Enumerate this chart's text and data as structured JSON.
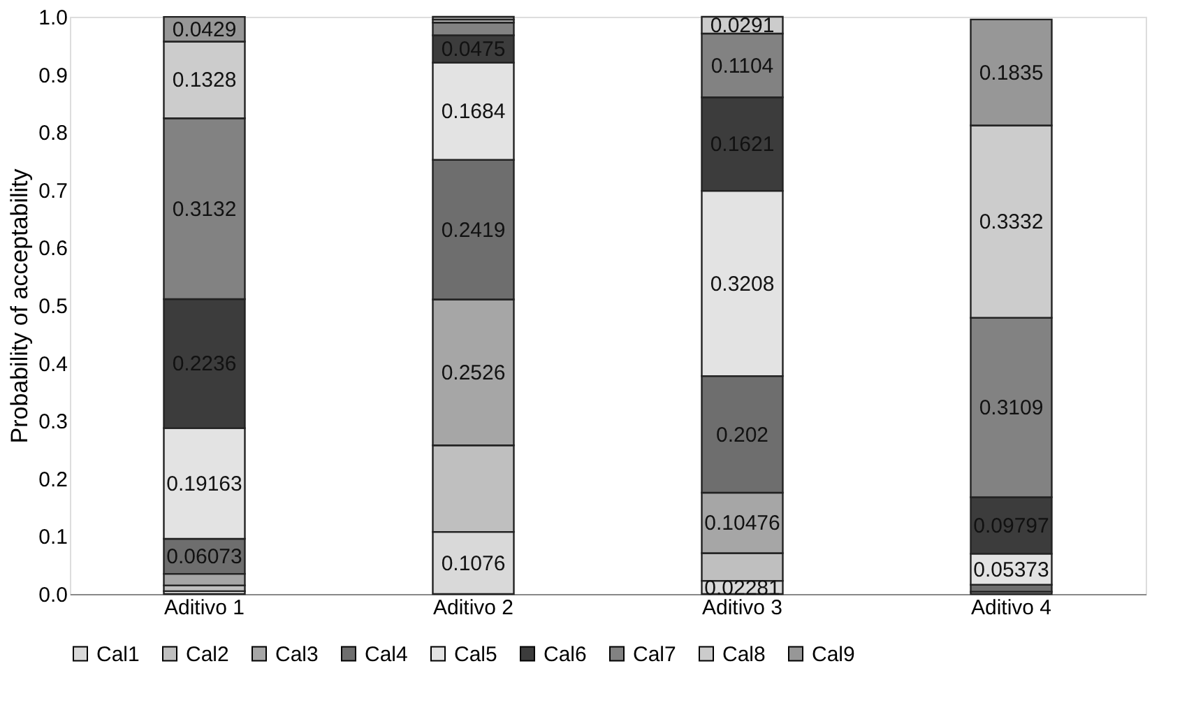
{
  "chart_data": {
    "type": "bar",
    "stacked": true,
    "ylabel": "Probability of acceptability",
    "categories": [
      "Aditivo 1",
      "Aditivo 2",
      "Aditivo 3",
      "Aditivo 4"
    ],
    "ylim": [
      0,
      1
    ],
    "yticks": [
      {
        "value": 0,
        "label": "0.0"
      },
      0.1,
      0.2,
      0.3,
      0.4,
      0.5,
      0.6,
      0.7,
      0.8,
      0.9,
      {
        "value": 1,
        "label": "1.0"
      }
    ],
    "grid": false,
    "legend": "bottom",
    "series": [
      {
        "name": "Cal1",
        "color": "#d9d9d9",
        "values": [
          0.005,
          0.1076,
          0.02281,
          null
        ],
        "value_labels": [
          null,
          "0.1076",
          "0.02281",
          null
        ]
      },
      {
        "name": "Cal2",
        "color": "#bfbfbf",
        "values": [
          0.01,
          0.15,
          0.048,
          null
        ],
        "value_labels": [
          null,
          null,
          null,
          null
        ]
      },
      {
        "name": "Cal3",
        "color": "#a6a6a6",
        "values": [
          0.02,
          0.2526,
          0.10476,
          0.004
        ],
        "value_labels": [
          null,
          "0.2526",
          "0.10476",
          null
        ]
      },
      {
        "name": "Cal4",
        "color": "#6e6e6e",
        "values": [
          0.06073,
          0.2419,
          0.202,
          0.012
        ],
        "value_labels": [
          "0.06073",
          "0.2419",
          "0.202",
          null
        ]
      },
      {
        "name": "Cal5",
        "color": "#e3e3e3",
        "values": [
          0.19163,
          0.1684,
          0.3208,
          0.05373
        ],
        "value_labels": [
          "0.19163",
          "0.1684",
          "0.3208",
          "0.05373"
        ]
      },
      {
        "name": "Cal6",
        "color": "#3c3c3c",
        "values": [
          0.2236,
          0.0475,
          0.1621,
          0.09797
        ],
        "value_labels": [
          "0.2236",
          "0.0475",
          "0.1621",
          "0.09797"
        ]
      },
      {
        "name": "Cal7",
        "color": "#828282",
        "values": [
          0.3132,
          0.022,
          0.1104,
          0.3109
        ],
        "value_labels": [
          "0.3132",
          null,
          "0.1104",
          "0.3109"
        ]
      },
      {
        "name": "Cal8",
        "color": "#cccccc",
        "values": [
          0.1328,
          0.005,
          0.0291,
          0.3332
        ],
        "value_labels": [
          "0.1328",
          null,
          "0.0291",
          "0.3332"
        ]
      },
      {
        "name": "Cal9",
        "color": "#979797",
        "values": [
          0.0429,
          0.005,
          null,
          0.1835
        ],
        "value_labels": [
          "0.0429",
          null,
          null,
          "0.1835"
        ]
      }
    ]
  }
}
